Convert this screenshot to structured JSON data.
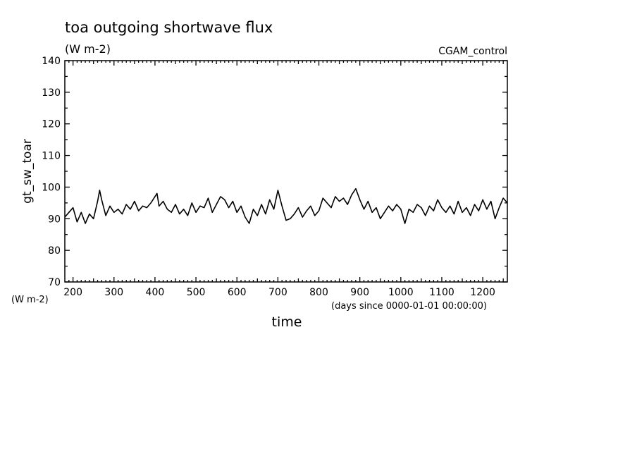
{
  "chart_data": {
    "type": "line",
    "title": "toa outgoing shortwave flux",
    "subtitle": "(W m-2)",
    "run_label": "CGAM_control",
    "ylabel": "gt_sw_toar",
    "yunit_label": "(W m-2)",
    "xlabel": "time",
    "xunit_label": "(days since 0000-01-01 00:00:00)",
    "xlim": [
      180,
      1260
    ],
    "ylim": [
      70,
      140
    ],
    "xticks": [
      200,
      300,
      400,
      500,
      600,
      700,
      800,
      900,
      1000,
      1100,
      1200
    ],
    "yticks": [
      70,
      80,
      90,
      100,
      110,
      120,
      130,
      140
    ],
    "grid": false,
    "series": [
      {
        "x": [
          180,
          190,
          200,
          210,
          220,
          230,
          240,
          250,
          260,
          265,
          270,
          280,
          290,
          300,
          310,
          320,
          330,
          340,
          350,
          360,
          370,
          380,
          390,
          400,
          405,
          410,
          420,
          430,
          440,
          450,
          460,
          470,
          480,
          490,
          500,
          510,
          520,
          530,
          540,
          550,
          560,
          570,
          580,
          590,
          600,
          610,
          620,
          630,
          640,
          650,
          660,
          670,
          680,
          690,
          700,
          710,
          720,
          730,
          740,
          750,
          760,
          770,
          780,
          790,
          800,
          810,
          820,
          830,
          840,
          850,
          860,
          870,
          880,
          890,
          900,
          910,
          920,
          930,
          940,
          950,
          960,
          970,
          980,
          990,
          1000,
          1010,
          1020,
          1030,
          1040,
          1050,
          1060,
          1070,
          1080,
          1090,
          1100,
          1110,
          1120,
          1130,
          1140,
          1150,
          1160,
          1170,
          1180,
          1190,
          1200,
          1210,
          1220,
          1230,
          1240,
          1250,
          1260
        ],
        "values": [
          90.5,
          92.0,
          93.5,
          89.0,
          92.0,
          88.5,
          91.5,
          90.0,
          95.5,
          99.0,
          96.0,
          91.0,
          94.0,
          92.0,
          93.0,
          91.5,
          94.5,
          93.0,
          95.5,
          92.5,
          94.0,
          93.5,
          95.0,
          97.0,
          98.0,
          94.0,
          95.5,
          93.0,
          92.0,
          94.5,
          91.5,
          93.0,
          91.0,
          95.0,
          92.0,
          94.0,
          93.5,
          96.5,
          92.0,
          94.5,
          97.0,
          96.0,
          93.5,
          95.5,
          92.0,
          94.0,
          90.5,
          88.5,
          93.0,
          91.0,
          94.5,
          91.5,
          96.0,
          93.0,
          99.0,
          94.0,
          89.5,
          90.0,
          91.5,
          93.5,
          90.5,
          92.5,
          94.0,
          91.0,
          92.5,
          96.5,
          95.0,
          93.5,
          97.0,
          95.5,
          96.5,
          94.5,
          97.5,
          99.5,
          96.0,
          93.0,
          95.5,
          92.0,
          93.5,
          90.0,
          92.0,
          94.0,
          92.5,
          94.5,
          93.0,
          88.5,
          93.0,
          92.0,
          94.5,
          93.5,
          91.0,
          94.0,
          92.5,
          96.0,
          93.5,
          92.0,
          94.0,
          91.5,
          95.5,
          92.0,
          93.5,
          91.0,
          94.5,
          92.5,
          96.0,
          93.0,
          95.5,
          90.0,
          93.5,
          96.5,
          95.0
        ]
      }
    ]
  }
}
